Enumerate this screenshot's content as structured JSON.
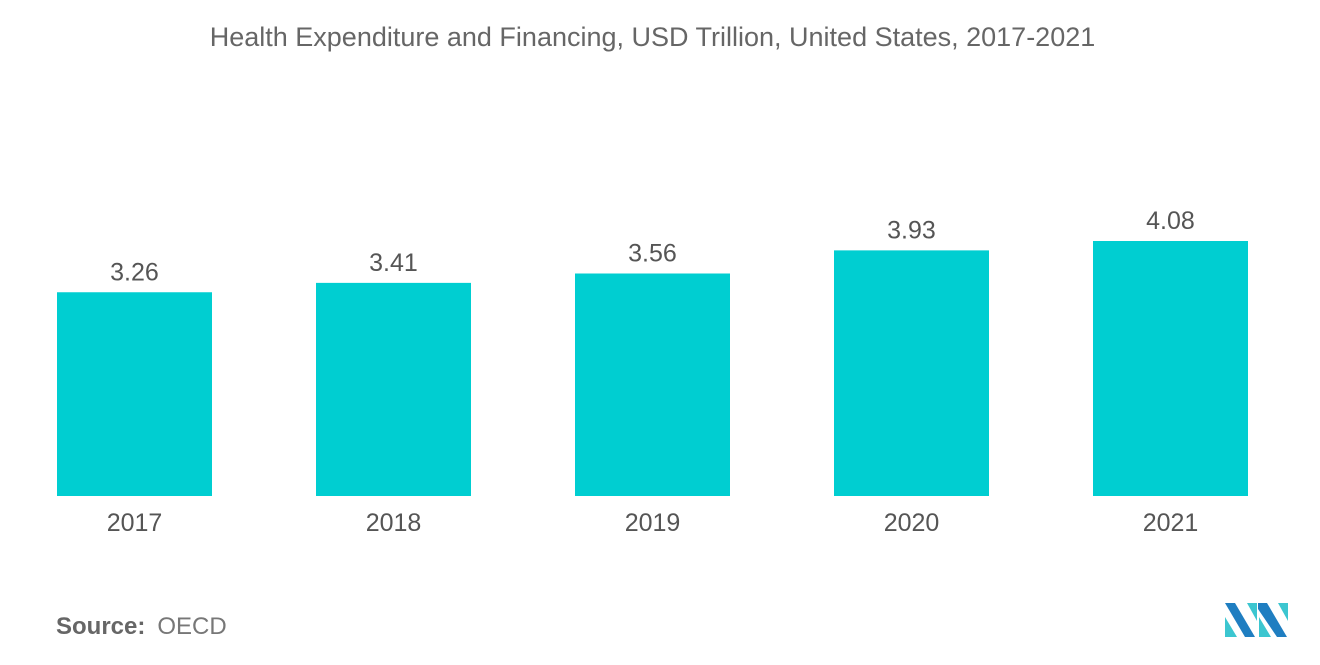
{
  "chart_data": {
    "type": "bar",
    "title": "Health Expenditure and Financing, USD Trillion, United States, 2017-2021",
    "categories": [
      "2017",
      "2018",
      "2019",
      "2020",
      "2021"
    ],
    "values": [
      3.26,
      3.41,
      3.56,
      3.93,
      4.08
    ],
    "data_labels": [
      "3.26",
      "3.41",
      "3.56",
      "3.93",
      "4.08"
    ],
    "xlabel": "",
    "ylabel": "",
    "ylim": [
      0,
      4.08
    ],
    "grid": false,
    "legend": "none",
    "bar_color": "#00CED1"
  },
  "source": {
    "label": "Source:",
    "value": "OECD"
  },
  "logo": {
    "name": "mordor-intelligence-logo",
    "colors": [
      "#1F7EC1",
      "#3CC6D0"
    ]
  }
}
